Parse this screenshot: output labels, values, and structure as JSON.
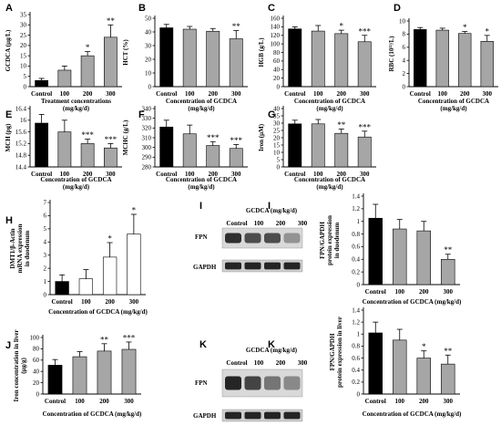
{
  "chart_data": [
    {
      "id": "A",
      "type": "bar",
      "panel_label": "A",
      "ylabel": "GCDCA (μg/L)",
      "xlabel_lines": [
        "Treatment concentrations",
        "(mg/kg/d)"
      ],
      "categories": [
        "Control",
        "100",
        "200",
        "300"
      ],
      "values": [
        3,
        8,
        15,
        24
      ],
      "errors": [
        1,
        2,
        2,
        6
      ],
      "stars": [
        "",
        "",
        "*",
        "**"
      ],
      "ylim": [
        0,
        35
      ],
      "yticks": [
        0,
        5,
        10,
        15,
        20,
        25,
        30,
        35
      ],
      "colors": [
        "#000000",
        "#a6a6a6",
        "#a6a6a6",
        "#a6a6a6"
      ]
    },
    {
      "id": "B",
      "type": "bar",
      "panel_label": "B",
      "ylabel": "HCT (%)",
      "xlabel_lines": [
        "Concentration of GCDCA",
        "(mg/kg/d)"
      ],
      "categories": [
        "Control",
        "100",
        "200",
        "300"
      ],
      "values": [
        43,
        42,
        40.5,
        35
      ],
      "errors": [
        2.5,
        2,
        2,
        6
      ],
      "stars": [
        "",
        "",
        "",
        "**"
      ],
      "ylim": [
        0,
        50
      ],
      "yticks": [
        0,
        10,
        20,
        30,
        40,
        50
      ],
      "colors": [
        "#000000",
        "#a6a6a6",
        "#a6a6a6",
        "#a6a6a6"
      ]
    },
    {
      "id": "C",
      "type": "bar",
      "panel_label": "C",
      "ylabel": "HGB (g/L)",
      "xlabel_lines": [
        "Concentration of GCDCA",
        "(mg/kg/d)"
      ],
      "categories": [
        "Control",
        "100",
        "200",
        "300"
      ],
      "values": [
        135,
        130,
        124,
        105
      ],
      "errors": [
        5,
        13,
        8,
        15
      ],
      "stars": [
        "",
        "",
        "*",
        "***"
      ],
      "ylim": [
        0,
        160
      ],
      "yticks": [
        0,
        20,
        40,
        60,
        80,
        100,
        120,
        140,
        160
      ],
      "colors": [
        "#000000",
        "#a6a6a6",
        "#a6a6a6",
        "#a6a6a6"
      ]
    },
    {
      "id": "D",
      "type": "bar",
      "panel_label": "D",
      "ylabel": "RBC (10¹²/L)",
      "xlabel_lines": [
        "Concentration of GCDCA",
        "(mg/kg/d)"
      ],
      "categories": [
        "Control",
        "100",
        "200",
        "300"
      ],
      "values": [
        8.7,
        8.6,
        8.1,
        6.9
      ],
      "errors": [
        0.3,
        0.3,
        0.3,
        0.9
      ],
      "stars": [
        "",
        "",
        "*",
        "*"
      ],
      "ylim": [
        0,
        10
      ],
      "yticks": [
        0,
        2,
        4,
        6,
        8,
        10
      ],
      "colors": [
        "#000000",
        "#a6a6a6",
        "#a6a6a6",
        "#a6a6a6"
      ]
    },
    {
      "id": "E",
      "type": "bar",
      "panel_label": "E",
      "ylabel": "MCH (pg)",
      "xlabel_lines": [
        "Concentration of GCDCA",
        "(mg/kg/d)"
      ],
      "categories": [
        "Control",
        "100",
        "200",
        "300"
      ],
      "values": [
        15.9,
        15.6,
        15.2,
        15.05
      ],
      "errors": [
        0.3,
        0.4,
        0.15,
        0.15
      ],
      "stars": [
        "",
        "",
        "***",
        "***"
      ],
      "ylim": [
        14.4,
        16.4
      ],
      "yticks": [
        14.4,
        14.8,
        15.2,
        15.6,
        16,
        16.4
      ],
      "colors": [
        "#000000",
        "#a6a6a6",
        "#a6a6a6",
        "#a6a6a6"
      ]
    },
    {
      "id": "F",
      "type": "bar",
      "panel_label": "F",
      "ylabel": "MCHC (g/L)",
      "xlabel_lines": [
        "Concentration of GCDCA",
        "(mg/kg/d)"
      ],
      "categories": [
        "Control",
        "100",
        "200",
        "300"
      ],
      "values": [
        321,
        314,
        302,
        299
      ],
      "errors": [
        7,
        9,
        4,
        4
      ],
      "stars": [
        "",
        "",
        "***",
        "***"
      ],
      "ylim": [
        280,
        340
      ],
      "yticks": [
        280,
        290,
        300,
        310,
        320,
        330,
        340
      ],
      "colors": [
        "#000000",
        "#a6a6a6",
        "#a6a6a6",
        "#a6a6a6"
      ]
    },
    {
      "id": "G",
      "type": "bar",
      "panel_label": "G",
      "ylabel": "Iron (μM)",
      "xlabel_lines": [
        "Concentration of GCDCA",
        "(mg/kg/d)"
      ],
      "categories": [
        "Control",
        "100",
        "200",
        "300"
      ],
      "values": [
        29.5,
        29.5,
        23,
        20.5
      ],
      "errors": [
        2.5,
        3,
        3,
        4
      ],
      "stars": [
        "",
        "",
        "**",
        "***"
      ],
      "ylim": [
        0,
        40
      ],
      "yticks": [
        0,
        5,
        10,
        15,
        20,
        25,
        30,
        35,
        40
      ],
      "colors": [
        "#000000",
        "#a6a6a6",
        "#a6a6a6",
        "#a6a6a6"
      ]
    },
    {
      "id": "H",
      "type": "bar",
      "panel_label": "H",
      "ylabel_lines": [
        "DMT1/β-Actin",
        "mRNA expression",
        "in duodenum"
      ],
      "xlabel_lines": [
        "Concentration of GCDCA (mg/kg/d)"
      ],
      "categories": [
        "Control",
        "100",
        "200",
        "300"
      ],
      "values": [
        1,
        1.2,
        2.85,
        4.6
      ],
      "errors": [
        0.5,
        0.7,
        1.1,
        1.5
      ],
      "stars": [
        "",
        "",
        "*",
        "*"
      ],
      "ylim": [
        0,
        7
      ],
      "yticks": [
        0,
        1,
        2,
        3,
        4,
        5,
        6,
        7
      ],
      "colors": [
        "#000000",
        "#ffffff",
        "#ffffff",
        "#ffffff"
      ]
    },
    {
      "id": "I",
      "type": "bar",
      "panel_label": "I",
      "ylabel_lines": [
        "FPN/GAPDH",
        "protein expression",
        "in duodenum"
      ],
      "xlabel_lines": [
        "Concentration of GCDCA (mg/kg/d)"
      ],
      "categories": [
        "Control",
        "100",
        "200",
        "300"
      ],
      "values": [
        1.05,
        0.88,
        0.85,
        0.4
      ],
      "errors": [
        0.22,
        0.15,
        0.15,
        0.08
      ],
      "stars": [
        "",
        "",
        "",
        "**"
      ],
      "ylim": [
        0,
        1.4
      ],
      "yticks": [
        0,
        0.2,
        0.4,
        0.6,
        0.8,
        1,
        1.2,
        1.4
      ],
      "colors": [
        "#000000",
        "#a6a6a6",
        "#a6a6a6",
        "#a6a6a6"
      ]
    },
    {
      "id": "J",
      "type": "bar",
      "panel_label": "J",
      "ylabel_lines": [
        "Iron concentration in liver",
        "(μg/g)"
      ],
      "xlabel_lines": [
        "Concentration of GCDCA (mg/kg/d)"
      ],
      "categories": [
        "Control",
        "100",
        "200",
        "300"
      ],
      "values": [
        51,
        66,
        76,
        79
      ],
      "errors": [
        10,
        9,
        13,
        13
      ],
      "stars": [
        "",
        "",
        "**",
        "***"
      ],
      "ylim": [
        0,
        100
      ],
      "yticks": [
        0,
        20,
        40,
        60,
        80,
        100
      ],
      "colors": [
        "#000000",
        "#a6a6a6",
        "#a6a6a6",
        "#a6a6a6"
      ]
    },
    {
      "id": "K",
      "type": "bar",
      "panel_label": "K",
      "ylabel_lines": [
        "FPN/GAPDH",
        "protein expression in liver"
      ],
      "xlabel_lines": [
        "Concentration of GCDCA (mg/kg/d)"
      ],
      "categories": [
        "Control",
        "100",
        "200",
        "300"
      ],
      "values": [
        1.02,
        0.9,
        0.6,
        0.5
      ],
      "errors": [
        0.18,
        0.18,
        0.12,
        0.15
      ],
      "stars": [
        "",
        "",
        "*",
        "**"
      ],
      "ylim": [
        0,
        1.4
      ],
      "yticks": [
        0,
        0.2,
        0.4,
        0.6,
        0.8,
        1,
        1.2,
        1.4
      ],
      "colors": [
        "#000000",
        "#a6a6a6",
        "#a6a6a6",
        "#a6a6a6"
      ]
    }
  ],
  "blots": [
    {
      "id": "I",
      "panel_label": "I",
      "header": "GCDCA (mg/kg/d)",
      "lanes": [
        "Control",
        "100",
        "200",
        "300"
      ],
      "rows": [
        "FPN",
        "GAPDH"
      ]
    },
    {
      "id": "K",
      "panel_label": "K",
      "header": "GCDCA (mg/kg/d)",
      "lanes": [
        "Control",
        "100",
        "200",
        "300"
      ],
      "rows": [
        "FPN",
        "GAPDH"
      ]
    }
  ]
}
